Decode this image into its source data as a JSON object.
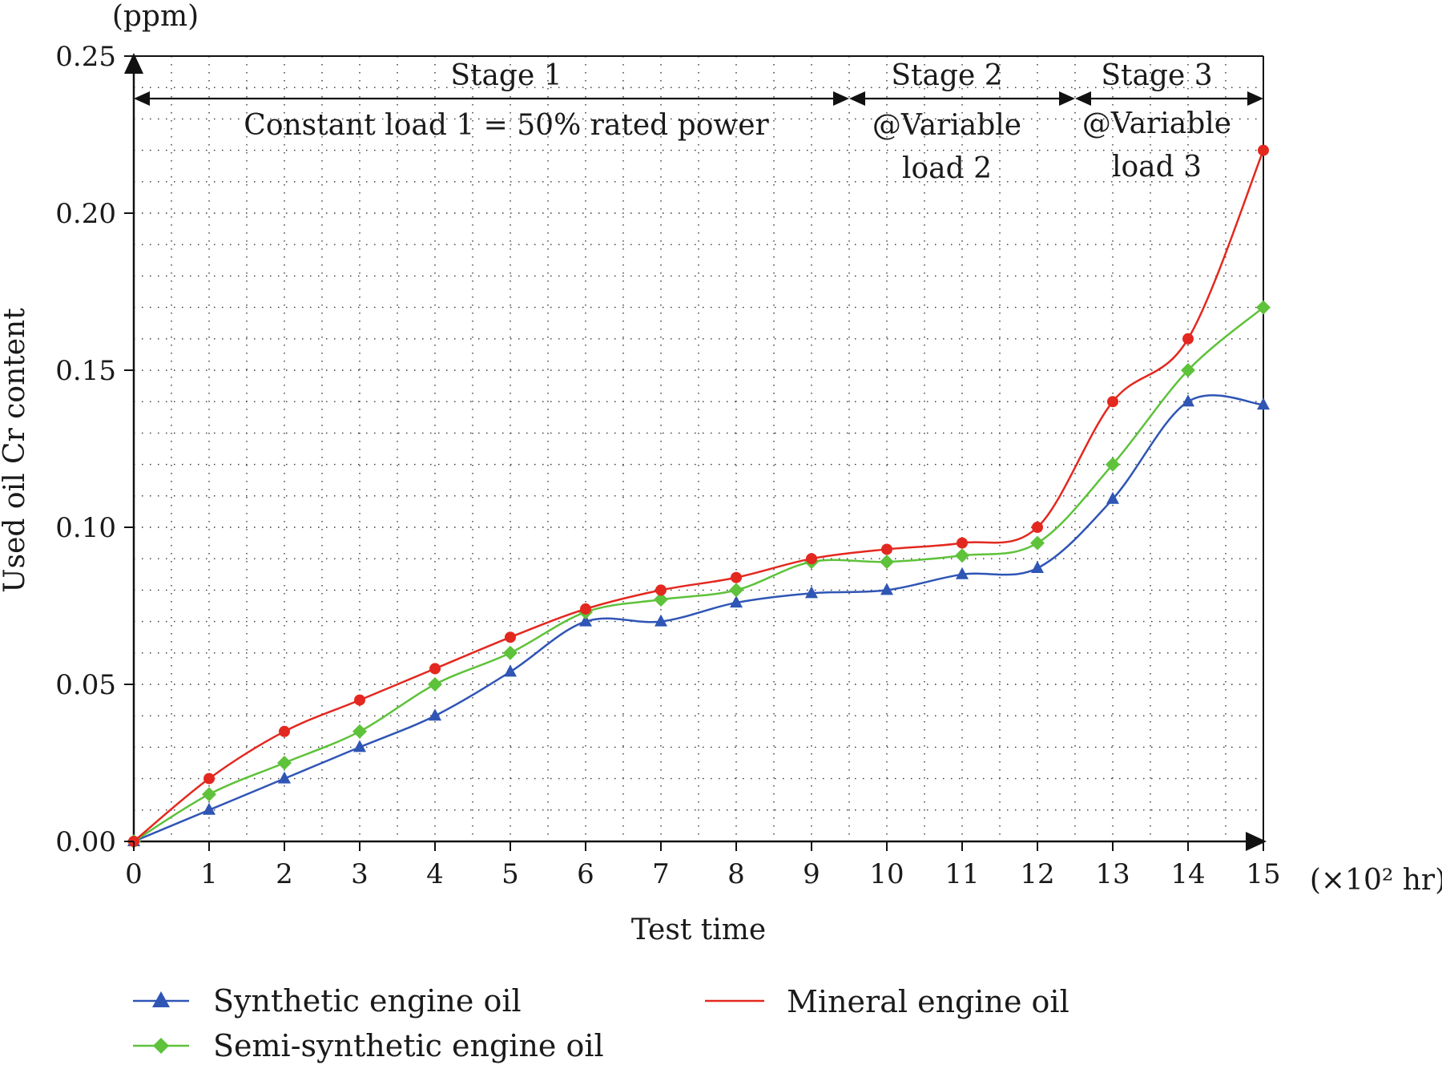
{
  "chart_data": {
    "type": "line",
    "title": "",
    "xlabel": "Test time",
    "x_unit": "(×10² hr)",
    "ylabel": "Used oil Cr content",
    "y_unit": "(ppm)",
    "xlim": [
      0,
      15
    ],
    "ylim": [
      0,
      0.25
    ],
    "grid": "dotted",
    "legend_position": "bottom",
    "x": [
      0,
      1,
      2,
      3,
      4,
      5,
      6,
      7,
      8,
      9,
      10,
      11,
      12,
      13,
      14,
      15
    ],
    "x_ticks": [
      "0",
      "1",
      "2",
      "3",
      "4",
      "5",
      "6",
      "7",
      "8",
      "9",
      "10",
      "11",
      "12",
      "13",
      "14",
      "15"
    ],
    "y_ticks": [
      "0.00",
      "0.05",
      "0.10",
      "0.15",
      "0.20",
      "0.25"
    ],
    "y_tick_values": [
      0,
      0.05,
      0.1,
      0.15,
      0.2,
      0.25
    ],
    "series": [
      {
        "name": "Synthetic engine oil",
        "color": "#2f55b5",
        "marker": "triangle",
        "values": [
          0.0,
          0.01,
          0.02,
          0.03,
          0.04,
          0.054,
          0.07,
          0.07,
          0.076,
          0.079,
          0.08,
          0.085,
          0.087,
          0.109,
          0.14,
          0.139
        ]
      },
      {
        "name": "Semi-synthetic engine oil",
        "color": "#5ec23a",
        "marker": "diamond",
        "values": [
          0.0,
          0.015,
          0.025,
          0.035,
          0.05,
          0.06,
          0.073,
          0.077,
          0.08,
          0.089,
          0.089,
          0.091,
          0.095,
          0.12,
          0.15,
          0.17
        ]
      },
      {
        "name": "Mineral engine oil",
        "color": "#e3281f",
        "marker": "circle",
        "values": [
          0.0,
          0.02,
          0.035,
          0.045,
          0.055,
          0.065,
          0.074,
          0.08,
          0.084,
          0.09,
          0.093,
          0.095,
          0.1,
          0.14,
          0.16,
          0.22
        ]
      }
    ],
    "annotations": {
      "stage1_label": "Stage 1",
      "stage1_desc": "Constant load 1 = 50% rated power",
      "stage2_label": "Stage 2",
      "stage2_desc_line1": "@Variable",
      "stage2_desc_line2": "load 2",
      "stage3_label": "Stage 3",
      "stage3_desc_line1": "@Variable",
      "stage3_desc_line2": "load 3",
      "stage_ranges": [
        [
          0,
          9.5
        ],
        [
          9.5,
          12.5
        ],
        [
          12.5,
          15
        ]
      ]
    }
  }
}
